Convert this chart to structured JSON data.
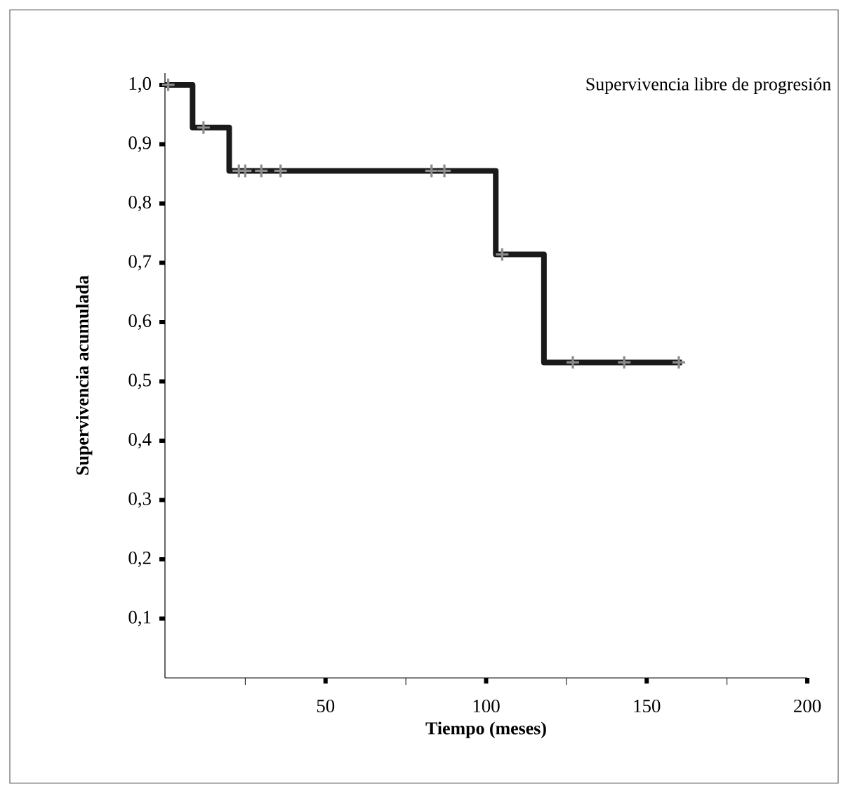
{
  "chart_data": {
    "type": "step",
    "title": "Supervivencia libre de progresión",
    "xlabel": "Tiempo (meses)",
    "ylabel": "Supervivencia acumulada",
    "xlim": [
      0,
      200
    ],
    "ylim": [
      0,
      1.02
    ],
    "xticks": [
      {
        "value": 25,
        "label": null
      },
      50,
      {
        "value": 75,
        "label": null
      },
      100,
      {
        "value": 125,
        "label": null
      },
      150,
      {
        "value": 175,
        "label": null
      },
      200
    ],
    "yticks": [
      {
        "value": 0.1,
        "label": "0,1"
      },
      {
        "value": 0.2,
        "label": "0,2"
      },
      {
        "value": 0.3,
        "label": "0,3"
      },
      {
        "value": 0.4,
        "label": "0,4"
      },
      {
        "value": 0.5,
        "label": "0,5"
      },
      {
        "value": 0.6,
        "label": "0,6"
      },
      {
        "value": 0.7,
        "label": "0,7"
      },
      {
        "value": 0.8,
        "label": "0,8"
      },
      {
        "value": 0.9,
        "label": "0,9"
      },
      {
        "value": 1.0,
        "label": "1,0"
      }
    ],
    "series": [
      {
        "color": "#1a1a1a",
        "marker": "none",
        "x": [
          0,
          8.6,
          20,
          103,
          118,
          161
        ],
        "values": [
          1.0,
          0.928,
          0.855,
          0.714,
          0.532,
          0.532
        ]
      },
      {
        "type": "scatter",
        "color": "#8c8c8c",
        "marker": "cross",
        "x": [
          1,
          12,
          23,
          25,
          30,
          36,
          83,
          87,
          105,
          127,
          143,
          160
        ],
        "values": [
          1.0,
          0.928,
          0.855,
          0.855,
          0.855,
          0.855,
          0.855,
          0.855,
          0.714,
          0.532,
          0.532,
          0.532
        ]
      }
    ]
  }
}
